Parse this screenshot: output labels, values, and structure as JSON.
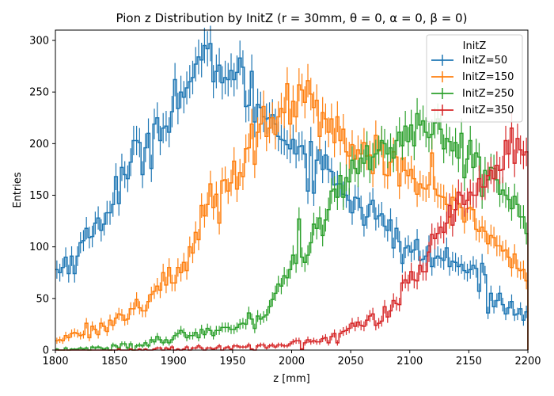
{
  "chart_data": {
    "type": "histogram-step",
    "title": "Pion z Distribution by InitZ (r = 30mm, θ = 0, α = 0, β = 0)",
    "xlabel": "z [mm]",
    "ylabel": "Entries",
    "xlim": [
      1800,
      2200
    ],
    "ylim": [
      0,
      310
    ],
    "xticks": [
      1800,
      1850,
      1900,
      1950,
      2000,
      2050,
      2100,
      2150,
      2200
    ],
    "yticks": [
      0,
      50,
      100,
      150,
      200,
      250,
      300
    ],
    "grid": false,
    "legend_title": "InitZ",
    "legend_position": "top-right",
    "error_bars": "sqrt(N)",
    "series": [
      {
        "name": "InitZ=50",
        "color": "#1f77b4",
        "points": [
          [
            1800,
            75
          ],
          [
            1820,
            95
          ],
          [
            1840,
            130
          ],
          [
            1860,
            170
          ],
          [
            1880,
            205
          ],
          [
            1900,
            240
          ],
          [
            1920,
            268
          ],
          [
            1935,
            280
          ],
          [
            1950,
            268
          ],
          [
            1970,
            240
          ],
          [
            1990,
            215
          ],
          [
            2010,
            190
          ],
          [
            2030,
            175
          ],
          [
            2050,
            150
          ],
          [
            2070,
            130
          ],
          [
            2090,
            105
          ],
          [
            2110,
            90
          ],
          [
            2120,
            92
          ],
          [
            2140,
            82
          ],
          [
            2160,
            72
          ],
          [
            2170,
            50
          ],
          [
            2180,
            42
          ],
          [
            2200,
            40
          ]
        ]
      },
      {
        "name": "InitZ=150",
        "color": "#ff7f0e",
        "points": [
          [
            1800,
            10
          ],
          [
            1820,
            17
          ],
          [
            1840,
            24
          ],
          [
            1860,
            33
          ],
          [
            1870,
            42
          ],
          [
            1890,
            62
          ],
          [
            1910,
            88
          ],
          [
            1920,
            110
          ],
          [
            1930,
            140
          ],
          [
            1950,
            165
          ],
          [
            1960,
            185
          ],
          [
            1970,
            208
          ],
          [
            1985,
            222
          ],
          [
            2000,
            238
          ],
          [
            2010,
            248
          ],
          [
            2020,
            225
          ],
          [
            2040,
            208
          ],
          [
            2060,
            190
          ],
          [
            2080,
            178
          ],
          [
            2100,
            170
          ],
          [
            2120,
            162
          ],
          [
            2140,
            140
          ],
          [
            2160,
            120
          ],
          [
            2180,
            92
          ],
          [
            2200,
            70
          ]
        ]
      },
      {
        "name": "InitZ=250",
        "color": "#2ca02c",
        "points": [
          [
            1800,
            1
          ],
          [
            1820,
            1
          ],
          [
            1840,
            2
          ],
          [
            1860,
            4
          ],
          [
            1880,
            6
          ],
          [
            1900,
            10
          ],
          [
            1920,
            15
          ],
          [
            1940,
            20
          ],
          [
            1960,
            26
          ],
          [
            1980,
            40
          ],
          [
            1990,
            60
          ],
          [
            2000,
            82
          ],
          [
            2020,
            112
          ],
          [
            2040,
            150
          ],
          [
            2060,
            185
          ],
          [
            2080,
            200
          ],
          [
            2100,
            208
          ],
          [
            2120,
            222
          ],
          [
            2130,
            205
          ],
          [
            2150,
            188
          ],
          [
            2170,
            172
          ],
          [
            2190,
            138
          ],
          [
            2200,
            115
          ]
        ]
      },
      {
        "name": "InitZ=350",
        "color": "#d62728",
        "points": [
          [
            1800,
            0
          ],
          [
            1850,
            0
          ],
          [
            1900,
            1
          ],
          [
            1950,
            2
          ],
          [
            1980,
            4
          ],
          [
            2000,
            6
          ],
          [
            2020,
            9
          ],
          [
            2040,
            14
          ],
          [
            2060,
            22
          ],
          [
            2080,
            35
          ],
          [
            2090,
            48
          ],
          [
            2100,
            65
          ],
          [
            2110,
            80
          ],
          [
            2120,
            100
          ],
          [
            2130,
            120
          ],
          [
            2140,
            138
          ],
          [
            2150,
            150
          ],
          [
            2160,
            160
          ],
          [
            2170,
            172
          ],
          [
            2180,
            185
          ],
          [
            2190,
            192
          ],
          [
            2200,
            198
          ]
        ]
      }
    ]
  }
}
